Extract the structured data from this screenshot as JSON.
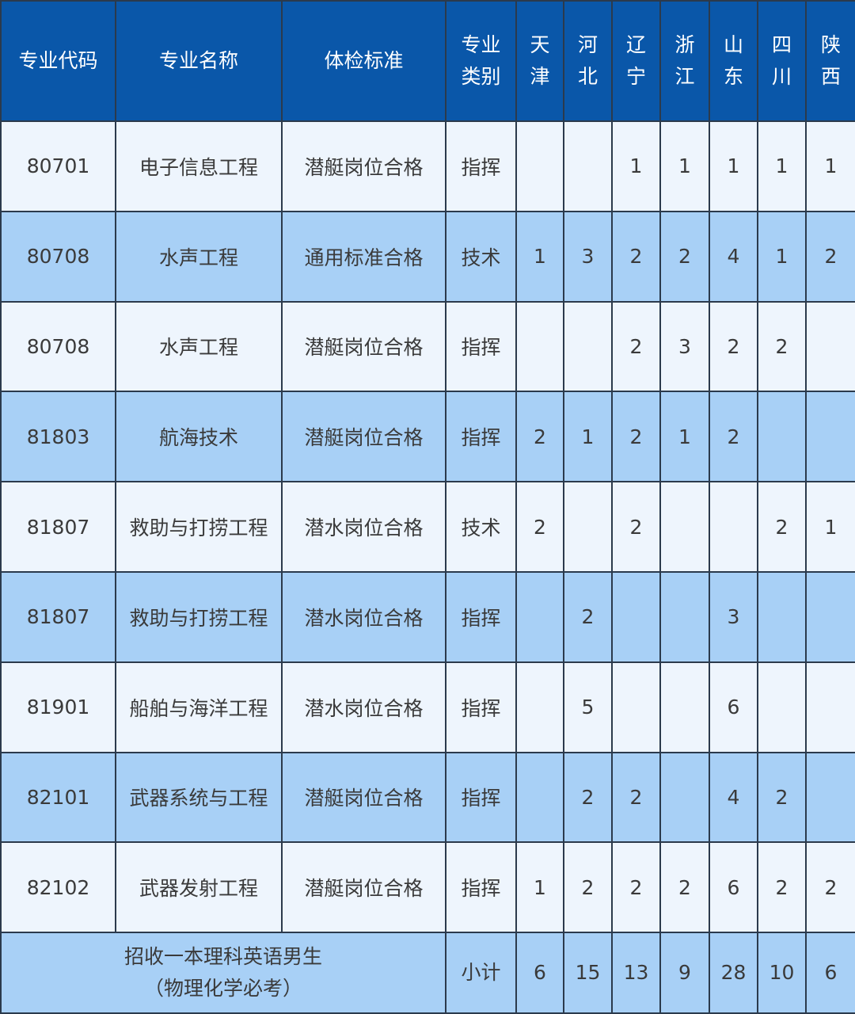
{
  "header": {
    "code": "专业代码",
    "name": "专业名称",
    "standard": "体检标准",
    "category": [
      "专业",
      "类别"
    ],
    "provinces": [
      [
        "天",
        "津"
      ],
      [
        "河",
        "北"
      ],
      [
        "辽",
        "宁"
      ],
      [
        "浙",
        "江"
      ],
      [
        "山",
        "东"
      ],
      [
        "四",
        "川"
      ],
      [
        "陕",
        "西"
      ]
    ]
  },
  "rows": [
    {
      "code": "80701",
      "name": "电子信息工程",
      "standard": "潜艇岗位合格",
      "category": "指挥",
      "counts": [
        "",
        "",
        "1",
        "1",
        "1",
        "1",
        "1"
      ]
    },
    {
      "code": "80708",
      "name": "水声工程",
      "standard": "通用标准合格",
      "category": "技术",
      "counts": [
        "1",
        "3",
        "2",
        "2",
        "4",
        "1",
        "2"
      ]
    },
    {
      "code": "80708",
      "name": "水声工程",
      "standard": "潜艇岗位合格",
      "category": "指挥",
      "counts": [
        "",
        "",
        "2",
        "3",
        "2",
        "2",
        ""
      ]
    },
    {
      "code": "81803",
      "name": "航海技术",
      "standard": "潜艇岗位合格",
      "category": "指挥",
      "counts": [
        "2",
        "1",
        "2",
        "1",
        "2",
        "",
        ""
      ]
    },
    {
      "code": "81807",
      "name": "救助与打捞工程",
      "standard": "潜水岗位合格",
      "category": "技术",
      "counts": [
        "2",
        "",
        "2",
        "",
        "",
        "2",
        "1"
      ]
    },
    {
      "code": "81807",
      "name": "救助与打捞工程",
      "standard": "潜水岗位合格",
      "category": "指挥",
      "counts": [
        "",
        "2",
        "",
        "",
        "3",
        "",
        ""
      ]
    },
    {
      "code": "81901",
      "name": "船舶与海洋工程",
      "standard": "潜水岗位合格",
      "category": "指挥",
      "counts": [
        "",
        "5",
        "",
        "",
        "6",
        "",
        ""
      ]
    },
    {
      "code": "82101",
      "name": "武器系统与工程",
      "standard": "潜艇岗位合格",
      "category": "指挥",
      "counts": [
        "",
        "2",
        "2",
        "",
        "4",
        "2",
        ""
      ]
    },
    {
      "code": "82102",
      "name": "武器发射工程",
      "standard": "潜艇岗位合格",
      "category": "指挥",
      "counts": [
        "1",
        "2",
        "2",
        "2",
        "6",
        "2",
        "2"
      ]
    }
  ],
  "total": {
    "note_line1": "招收一本理科英语男生",
    "note_line2": "（物理化学必考）",
    "label": "小计",
    "counts": [
      "6",
      "15",
      "13",
      "9",
      "28",
      "10",
      "6"
    ]
  },
  "colors": {
    "header_bg": "#0a57a9",
    "row_light": "#eef5fd",
    "row_blue": "#a8d0f6",
    "border": "#2b3a4c"
  }
}
